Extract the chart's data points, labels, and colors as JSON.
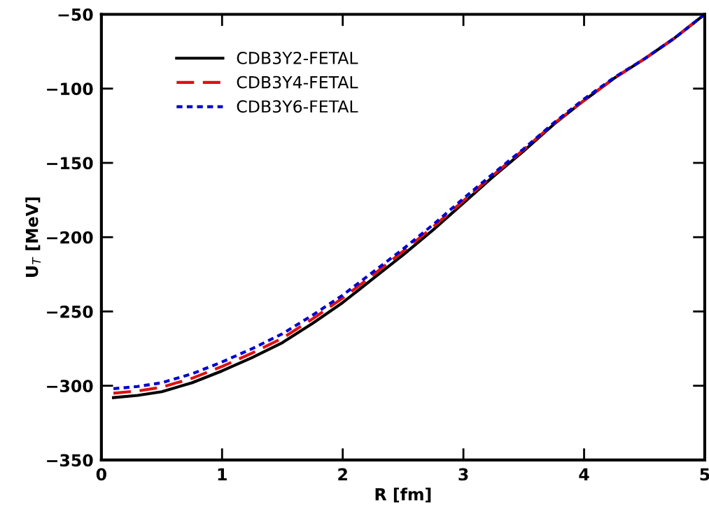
{
  "chart_data": {
    "type": "line",
    "xlabel": "R [fm]",
    "ylabel": "U$_{T}$ [MeV]",
    "x": [
      0.1,
      0.3,
      0.5,
      0.75,
      1,
      1.25,
      1.5,
      1.75,
      2,
      2.25,
      2.5,
      2.75,
      3,
      3.25,
      3.5,
      3.75,
      4,
      4.25,
      4.5,
      4.75,
      5
    ],
    "series": [
      {
        "name": "CDB3Y2-FETAL",
        "color": "#000000",
        "line_style": "solid",
        "values": [
          -308,
          -306.5,
          -304,
          -298,
          -290,
          -281,
          -271,
          -258,
          -244,
          -228,
          -212,
          -195,
          -177,
          -159,
          -142,
          -124,
          -108,
          -93,
          -80,
          -66,
          -50
        ]
      },
      {
        "name": "CDB3Y4-FETAL",
        "color": "#e01010",
        "line_style": "dashed",
        "values": [
          -305,
          -303.5,
          -301,
          -295,
          -287,
          -278,
          -268,
          -255,
          -241,
          -225.5,
          -209.5,
          -193,
          -175.5,
          -158,
          -141,
          -123.5,
          -108,
          -93,
          -80,
          -66,
          -50
        ]
      },
      {
        "name": "CDB3Y6-FETAL",
        "color": "#0000d0",
        "line_style": "dotted",
        "values": [
          -302,
          -300.5,
          -298,
          -292,
          -284,
          -275,
          -265,
          -252.5,
          -239,
          -223.5,
          -208,
          -191.5,
          -174,
          -157,
          -140.5,
          -123,
          -107,
          -92.5,
          -80,
          -66,
          -50
        ]
      }
    ],
    "xlim": [
      0,
      5
    ],
    "ylim": [
      -350,
      -50
    ],
    "xticks": [
      0,
      1,
      2,
      3,
      4,
      5
    ],
    "yticks": [
      {
        "value": -350,
        "label": "−350"
      },
      {
        "value": -300,
        "label": "−300"
      },
      {
        "value": -250,
        "label": "−250"
      },
      {
        "value": -200,
        "label": "−200"
      },
      {
        "value": -150,
        "label": "−150"
      },
      {
        "value": -100,
        "label": "−100"
      },
      {
        "value": -50,
        "label": "−50"
      }
    ],
    "grid": false,
    "legend": "top left",
    "marker": "none"
  }
}
